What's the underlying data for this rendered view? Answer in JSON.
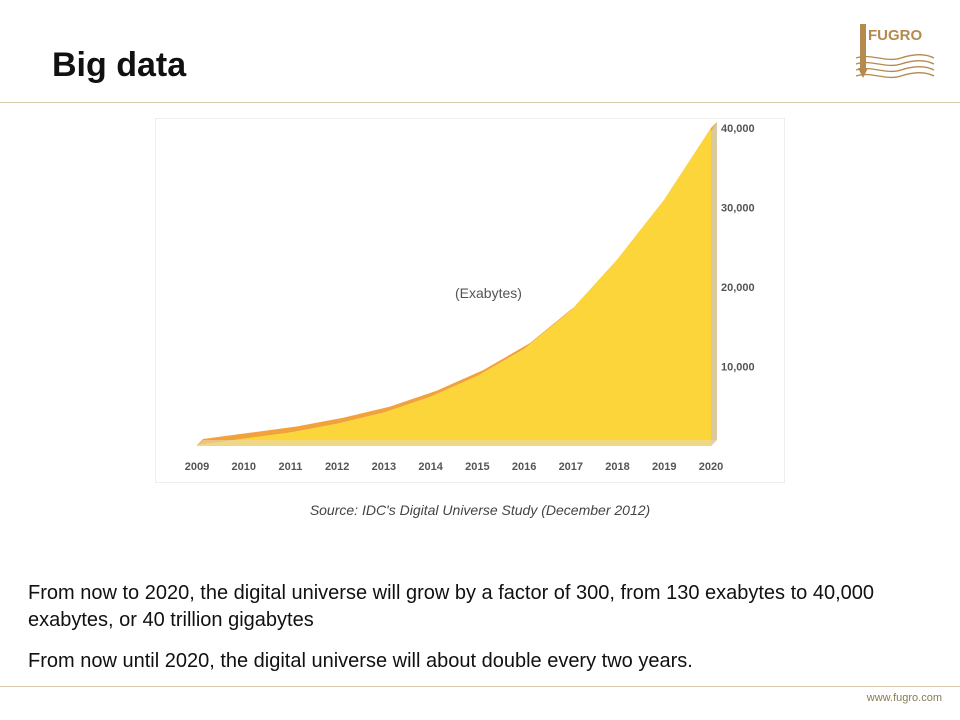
{
  "slide": {
    "title": "Big data",
    "logo_text": "FUGRO",
    "source": "Source: IDC's Digital Universe Study (December 2012)",
    "paragraphs": [
      "From now to 2020, the digital universe will grow by a factor of 300, from 130 exabytes to 40,000 exabytes, or 40 trillion gigabytes",
      "From now until 2020, the digital universe will about double every two years."
    ],
    "footer_url": "www.fugro.com"
  },
  "colors": {
    "area_fill": "#fcd53a",
    "area_edge": "#f2a23a",
    "rule": "#d8c9a8",
    "logo": "#b58a4e"
  },
  "chart_data": {
    "type": "area",
    "x": [
      "2009",
      "2010",
      "2011",
      "2012",
      "2013",
      "2014",
      "2015",
      "2016",
      "2017",
      "2018",
      "2019",
      "2020"
    ],
    "values": [
      130,
      900,
      1700,
      2800,
      4200,
      6200,
      8800,
      12200,
      17000,
      23500,
      31000,
      40000
    ],
    "annotation": "(Exabytes)",
    "ylim": [
      0,
      40000
    ],
    "yticks": [
      10000,
      20000,
      30000,
      40000
    ],
    "ytick_labels": [
      "10,000",
      "20,000",
      "30,000",
      "40,000"
    ],
    "y_axis_position": "right",
    "grid": false
  }
}
